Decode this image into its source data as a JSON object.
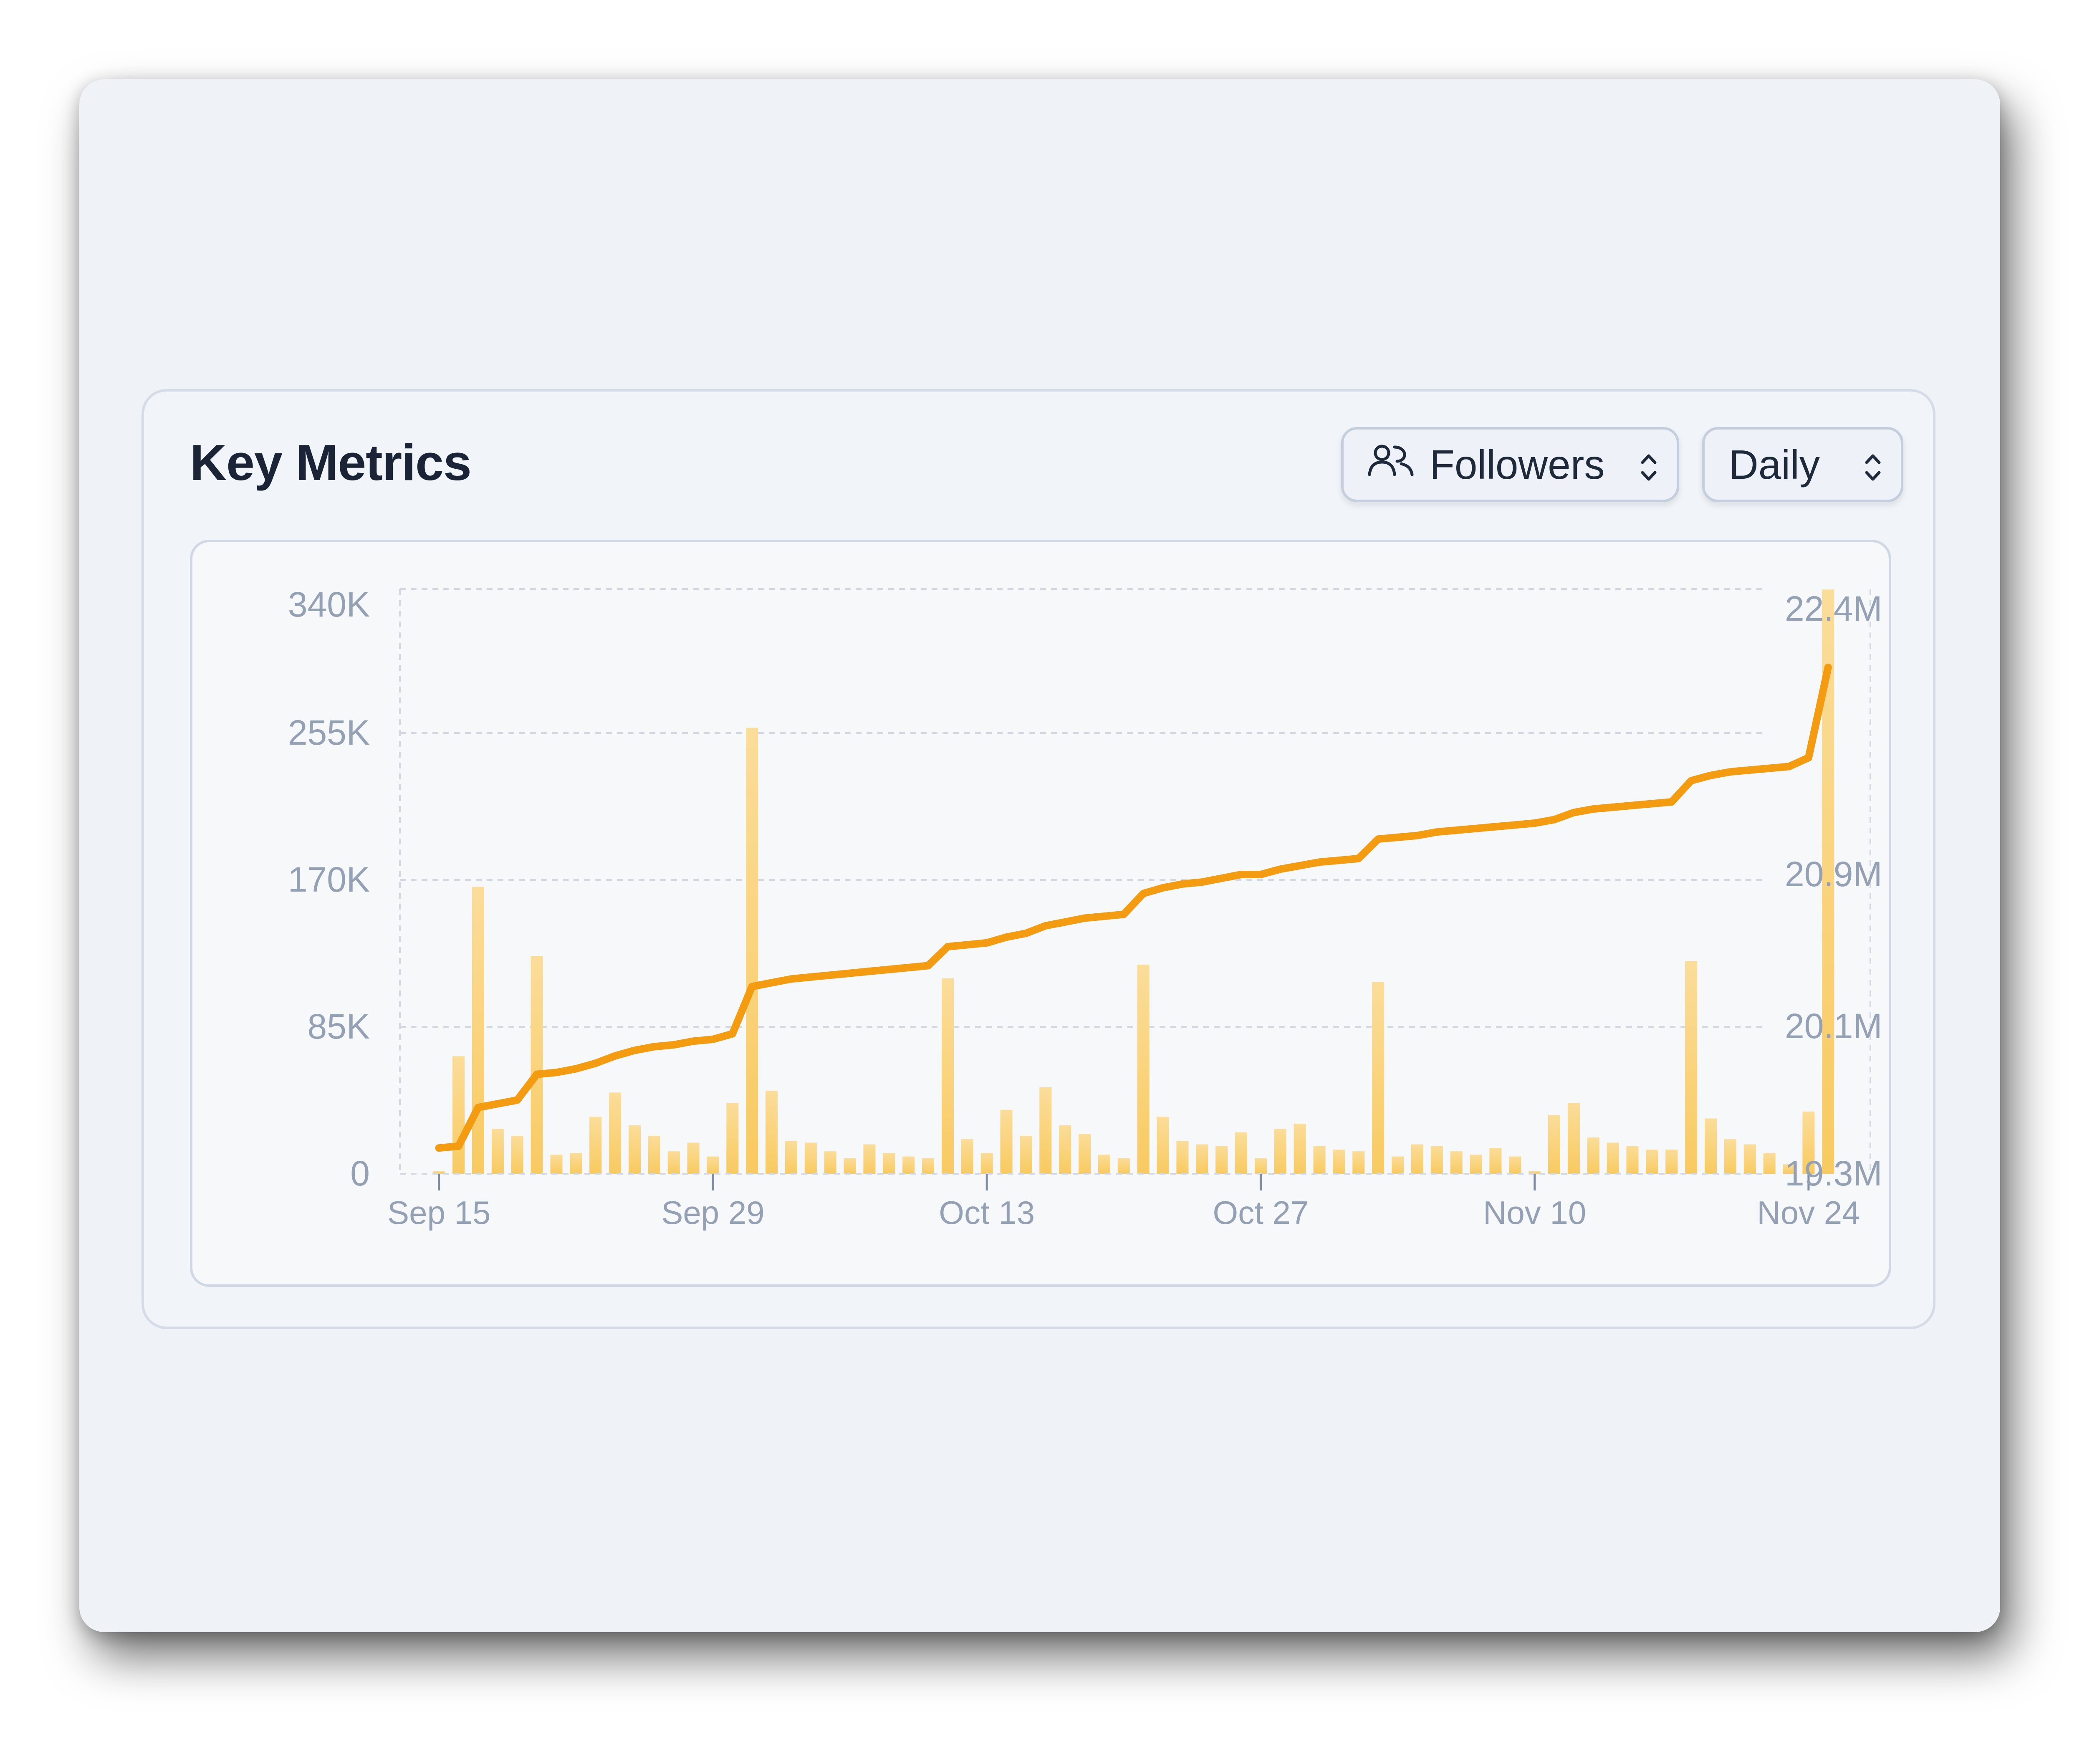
{
  "card": {
    "title": "Key Metrics",
    "metric_select": {
      "label": "Followers",
      "icon": "users-icon"
    },
    "period_select": {
      "label": "Daily"
    }
  },
  "colors": {
    "line": "#F39C12",
    "bar": "#F8CA61",
    "bar_light": "#FBDD9A",
    "grid": "#D3D9E2",
    "axis_text": "#94A0B4"
  },
  "chart_data": {
    "type": "bar+line",
    "x_ticks": [
      "Sep 15",
      "Sep 29",
      "Oct 13",
      "Oct 27",
      "Nov 10",
      "Nov 24"
    ],
    "x_tick_dates": [
      "2024-09-15",
      "2024-09-29",
      "2024-10-13",
      "2024-10-27",
      "2024-11-10",
      "2024-11-24"
    ],
    "x_range": [
      "2024-09-13",
      "2024-12-01"
    ],
    "left_axis": {
      "ticks": [
        0,
        85000,
        170000,
        255000,
        340000
      ],
      "tick_labels": [
        "0",
        "85K",
        "170K",
        "255K",
        "340K"
      ],
      "range": [
        0,
        340000
      ]
    },
    "right_axis": {
      "ticks": [
        19300000,
        20100000,
        20900000,
        22400000
      ],
      "tick_labels": [
        "19.3M",
        "20.1M",
        "20.9M",
        "22.4M"
      ],
      "range": [
        19300000,
        22400000
      ]
    },
    "grid": true,
    "series": [
      {
        "kind": "bar",
        "axis": "left",
        "dates": [
          "2024-09-15",
          "2024-09-16",
          "2024-09-17",
          "2024-09-18",
          "2024-09-19",
          "2024-09-20",
          "2024-09-21",
          "2024-09-22",
          "2024-09-23",
          "2024-09-24",
          "2024-09-25",
          "2024-09-26",
          "2024-09-27",
          "2024-09-28",
          "2024-09-29",
          "2024-09-30",
          "2024-10-01",
          "2024-10-02",
          "2024-10-03",
          "2024-10-04",
          "2024-10-05",
          "2024-10-06",
          "2024-10-07",
          "2024-10-08",
          "2024-10-09",
          "2024-10-10",
          "2024-10-11",
          "2024-10-12",
          "2024-10-13",
          "2024-10-14",
          "2024-10-15",
          "2024-10-16",
          "2024-10-17",
          "2024-10-18",
          "2024-10-19",
          "2024-10-20",
          "2024-10-21",
          "2024-10-22",
          "2024-10-23",
          "2024-10-24",
          "2024-10-25",
          "2024-10-26",
          "2024-10-27",
          "2024-10-28",
          "2024-10-29",
          "2024-10-30",
          "2024-10-31",
          "2024-11-01",
          "2024-11-02",
          "2024-11-03",
          "2024-11-04",
          "2024-11-05",
          "2024-11-06",
          "2024-11-07",
          "2024-11-08",
          "2024-11-09",
          "2024-11-10",
          "2024-11-11",
          "2024-11-12",
          "2024-11-13",
          "2024-11-14",
          "2024-11-15",
          "2024-11-16",
          "2024-11-17",
          "2024-11-18",
          "2024-11-19",
          "2024-11-20",
          "2024-11-21",
          "2024-11-22",
          "2024-11-23",
          "2024-11-24",
          "2024-11-25"
        ],
        "values": [
          1500,
          68000,
          166000,
          26000,
          22000,
          126000,
          11000,
          12000,
          33000,
          47000,
          28000,
          22000,
          13000,
          18000,
          10000,
          41000,
          258000,
          48000,
          19000,
          18000,
          13000,
          9000,
          17000,
          12000,
          10000,
          9000,
          113000,
          20000,
          12000,
          37000,
          22000,
          50000,
          28000,
          23000,
          11000,
          9000,
          121000,
          33000,
          19000,
          17000,
          16000,
          24000,
          9000,
          26000,
          29000,
          16000,
          14000,
          13000,
          111000,
          10000,
          17000,
          16000,
          13000,
          11000,
          15000,
          10000,
          1500,
          34000,
          41000,
          21000,
          18000,
          16000,
          14000,
          14000,
          123000,
          32000,
          20000,
          17000,
          12000,
          5500,
          36000,
          338000
        ]
      },
      {
        "kind": "line",
        "axis": "right",
        "dates": [
          "2024-09-15",
          "2024-09-16",
          "2024-09-17",
          "2024-09-18",
          "2024-09-19",
          "2024-09-20",
          "2024-09-21",
          "2024-09-22",
          "2024-09-23",
          "2024-09-24",
          "2024-09-25",
          "2024-09-26",
          "2024-09-27",
          "2024-09-28",
          "2024-09-29",
          "2024-09-30",
          "2024-10-01",
          "2024-10-02",
          "2024-10-03",
          "2024-10-04",
          "2024-10-05",
          "2024-10-06",
          "2024-10-07",
          "2024-10-08",
          "2024-10-09",
          "2024-10-10",
          "2024-10-11",
          "2024-10-12",
          "2024-10-13",
          "2024-10-14",
          "2024-10-15",
          "2024-10-16",
          "2024-10-17",
          "2024-10-18",
          "2024-10-19",
          "2024-10-20",
          "2024-10-21",
          "2024-10-22",
          "2024-10-23",
          "2024-10-24",
          "2024-10-25",
          "2024-10-26",
          "2024-10-27",
          "2024-10-28",
          "2024-10-29",
          "2024-10-30",
          "2024-10-31",
          "2024-11-01",
          "2024-11-02",
          "2024-11-03",
          "2024-11-04",
          "2024-11-05",
          "2024-11-06",
          "2024-11-07",
          "2024-11-08",
          "2024-11-09",
          "2024-11-10",
          "2024-11-11",
          "2024-11-12",
          "2024-11-13",
          "2024-11-14",
          "2024-11-15",
          "2024-11-16",
          "2024-11-17",
          "2024-11-18",
          "2024-11-19",
          "2024-11-20",
          "2024-11-21",
          "2024-11-22",
          "2024-11-23",
          "2024-11-24",
          "2024-11-25"
        ],
        "values": [
          19440000,
          19450000,
          19660000,
          19680000,
          19700000,
          19840000,
          19850000,
          19870000,
          19900000,
          19940000,
          19970000,
          19990000,
          20000000,
          20020000,
          20030000,
          20060000,
          20310000,
          20330000,
          20350000,
          20360000,
          20370000,
          20380000,
          20390000,
          20400000,
          20410000,
          20420000,
          20520000,
          20530000,
          20540000,
          20570000,
          20590000,
          20630000,
          20650000,
          20670000,
          20680000,
          20690000,
          20800000,
          20830000,
          20850000,
          20860000,
          20880000,
          20900000,
          20900000,
          20930000,
          20950000,
          20970000,
          20980000,
          20990000,
          21100000,
          21110000,
          21120000,
          21140000,
          21150000,
          21160000,
          21170000,
          21180000,
          21190000,
          21210000,
          21250000,
          21270000,
          21280000,
          21290000,
          21300000,
          21310000,
          21430000,
          21460000,
          21480000,
          21490000,
          21500000,
          21510000,
          21560000,
          22070000
        ]
      }
    ]
  }
}
